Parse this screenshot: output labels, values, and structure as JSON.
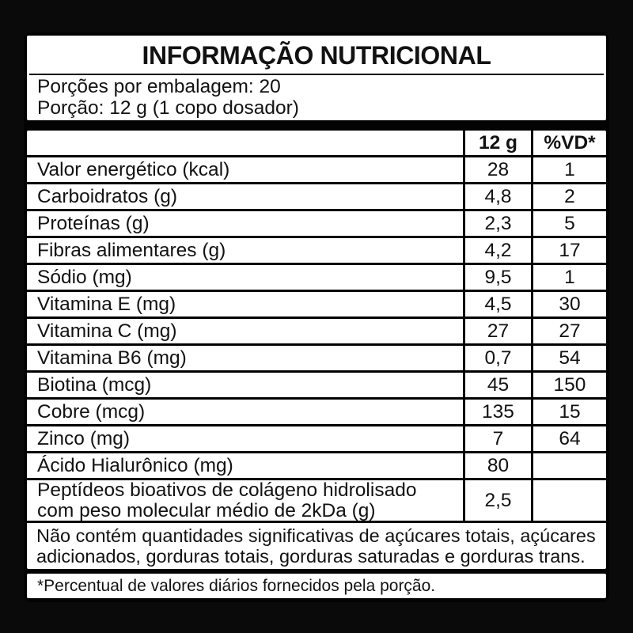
{
  "label": {
    "title": "INFORMAÇÃO NUTRICIONAL",
    "servings_line": "Porções por embalagem: 20",
    "serving_line": "Porção: 12 g (1 copo dosador)",
    "columns": {
      "amount": "12 g",
      "dv": "%VD*"
    },
    "rows": [
      {
        "name": "Valor energético (kcal)",
        "amount": "28",
        "dv": "1"
      },
      {
        "name": "Carboidratos (g)",
        "amount": "4,8",
        "dv": "2"
      },
      {
        "name": "Proteínas (g)",
        "amount": "2,3",
        "dv": "5"
      },
      {
        "name": "Fibras alimentares (g)",
        "amount": "4,2",
        "dv": "17"
      },
      {
        "name": "Sódio (mg)",
        "amount": "9,5",
        "dv": "1"
      },
      {
        "name": "Vitamina E (mg)",
        "amount": "4,5",
        "dv": "30"
      },
      {
        "name": "Vitamina C (mg)",
        "amount": "27",
        "dv": "27"
      },
      {
        "name": "Vitamina B6 (mg)",
        "amount": "0,7",
        "dv": "54"
      },
      {
        "name": "Biotina (mcg)",
        "amount": "45",
        "dv": "150"
      },
      {
        "name": "Cobre (mcg)",
        "amount": "135",
        "dv": "15"
      },
      {
        "name": "Zinco (mg)",
        "amount": "7",
        "dv": "64"
      },
      {
        "name": "Ácido Hialurônico (mg)",
        "amount": "80",
        "dv": ""
      },
      {
        "name": "Peptídeos bioativos de colágeno hidrolisado com peso molecular médio de 2kDa (g)",
        "amount": "2,5",
        "dv": "",
        "tall": true
      }
    ],
    "note": "Não contém quantidades significativas de açúcares totais, açúcares adicionados, gorduras totais, gorduras saturadas e gorduras trans.",
    "footnote": "*Percentual de valores diários fornecidos pela porção.",
    "colors": {
      "background": "#0a0a0a",
      "panel": "#ffffff",
      "ink": "#121212",
      "line": "#000000"
    }
  }
}
